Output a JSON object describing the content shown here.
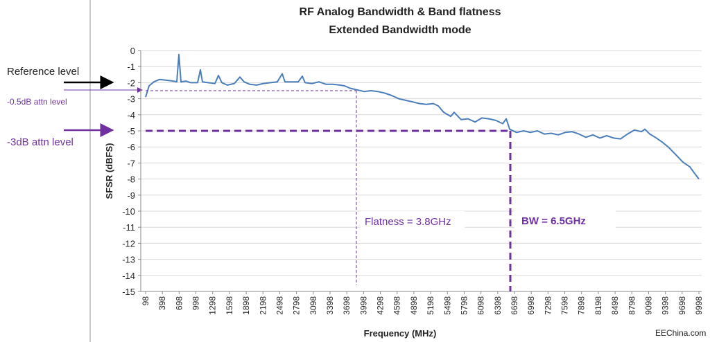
{
  "chart_data": {
    "type": "line",
    "title": [
      "RF Analog Bandwidth & Band flatness",
      "Extended Bandwidth mode"
    ],
    "xlabel": "Frequency (MHz)",
    "ylabel": "SFSR (dBFS)",
    "annotations": [
      "Reference level",
      "-0.5dB attn level",
      "-3dB attn level",
      "Flatness = 3.8GHz",
      "BW = 6.5GHz",
      "EEChina.com"
    ],
    "xlim": [
      98,
      9998
    ],
    "xticks": [
      98,
      398,
      698,
      998,
      1298,
      1598,
      1898,
      2198,
      2498,
      2798,
      3098,
      3398,
      3698,
      3998,
      4298,
      4598,
      4898,
      5198,
      5498,
      5798,
      6098,
      6398,
      6698,
      6998,
      7298,
      7598,
      7898,
      8198,
      8498,
      8798,
      9098,
      9398,
      9698,
      9998
    ],
    "ylim": [
      -15,
      0
    ],
    "yticks": [
      0,
      -1,
      -2,
      -3,
      -4,
      -5,
      -6,
      -7,
      -8,
      -9,
      -10,
      -11,
      -12,
      -13,
      -14,
      -15
    ],
    "grid": true,
    "series": [
      {
        "name": "SFSR",
        "color": "#4a7ebb",
        "x": [
          98,
          160,
          247,
          346,
          470,
          594,
          656,
          694,
          731,
          818,
          904,
          1029,
          1078,
          1115,
          1215,
          1339,
          1401,
          1463,
          1562,
          1686,
          1785,
          1860,
          1959,
          2083,
          2207,
          2331,
          2455,
          2542,
          2592,
          2703,
          2828,
          2902,
          2952,
          3076,
          3200,
          3324,
          3448,
          3572,
          3659,
          3758,
          3882,
          4006,
          4130,
          4254,
          4378,
          4503,
          4627,
          4751,
          4875,
          4999,
          5123,
          5247,
          5334,
          5433,
          5557,
          5619,
          5744,
          5868,
          5992,
          6116,
          6240,
          6364,
          6488,
          6550,
          6612,
          6736,
          6860,
          6984,
          7109,
          7233,
          7357,
          7481,
          7605,
          7729,
          7852,
          7976,
          8100,
          8225,
          8349,
          8473,
          8597,
          8721,
          8845,
          8969,
          9031,
          9118,
          9217,
          9341,
          9465,
          9589,
          9713,
          9838,
          9900,
          9998
        ],
        "values": [
          -2.9,
          -2.2,
          -1.95,
          -1.8,
          -1.85,
          -1.9,
          -1.95,
          -0.25,
          -1.95,
          -1.9,
          -2.0,
          -2.0,
          -1.2,
          -1.95,
          -2.0,
          -2.05,
          -1.55,
          -2.0,
          -2.15,
          -2.05,
          -1.65,
          -1.95,
          -2.1,
          -2.15,
          -2.05,
          -2.0,
          -1.95,
          -1.45,
          -1.95,
          -1.95,
          -1.95,
          -1.6,
          -2.0,
          -2.05,
          -1.95,
          -2.1,
          -2.1,
          -2.15,
          -2.2,
          -2.35,
          -2.45,
          -2.55,
          -2.5,
          -2.55,
          -2.65,
          -2.8,
          -3.0,
          -3.1,
          -3.2,
          -3.3,
          -3.35,
          -3.3,
          -3.45,
          -3.85,
          -4.1,
          -3.85,
          -4.3,
          -4.25,
          -4.45,
          -4.2,
          -4.25,
          -4.35,
          -4.55,
          -4.25,
          -4.9,
          -5.1,
          -5.0,
          -5.1,
          -5.0,
          -5.2,
          -5.15,
          -5.25,
          -5.1,
          -5.05,
          -5.2,
          -5.4,
          -5.25,
          -5.45,
          -5.3,
          -5.45,
          -5.5,
          -5.2,
          -4.95,
          -5.05,
          -4.9,
          -5.2,
          -5.4,
          -5.7,
          -6.05,
          -6.5,
          -6.95,
          -7.25,
          -7.55,
          -8.0
        ]
      }
    ]
  }
}
